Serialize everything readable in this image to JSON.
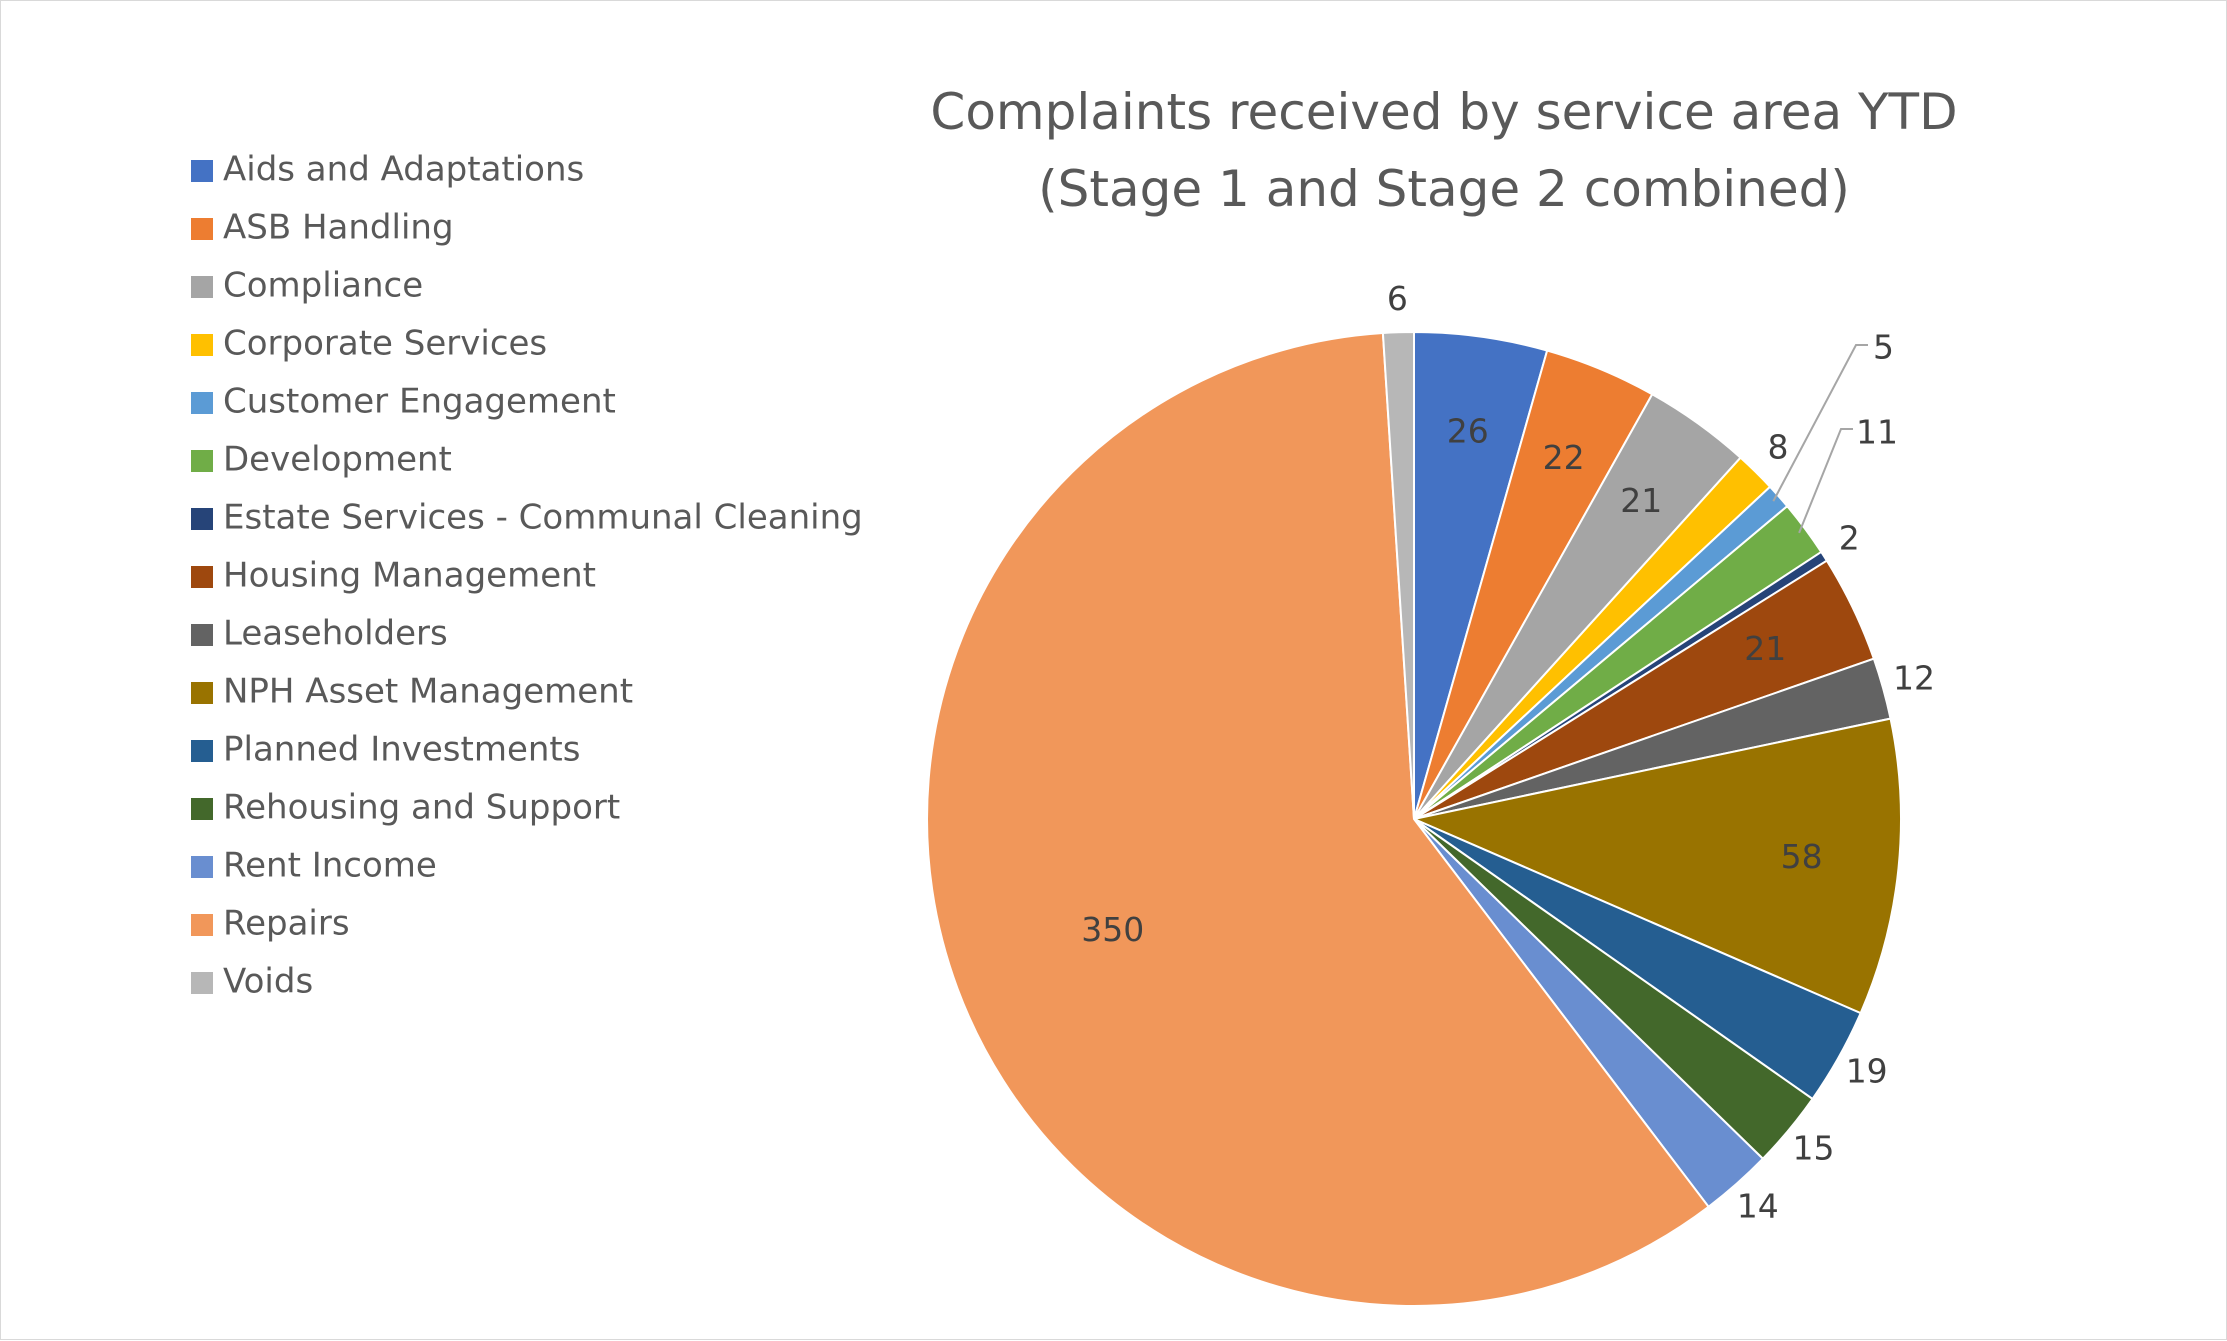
{
  "chart_data": {
    "type": "pie",
    "title": "Complaints received by service area YTD",
    "subtitle": "(Stage 1 and Stage 2 combined)",
    "legend_position": "left",
    "start_angle_deg": 0,
    "direction": "clockwise",
    "slices": [
      {
        "label": "Aids and Adaptations",
        "value": 26,
        "color": "#4472C4"
      },
      {
        "label": "ASB Handling",
        "value": 22,
        "color": "#ED7D31"
      },
      {
        "label": "Compliance",
        "value": 21,
        "color": "#A5A5A5"
      },
      {
        "label": "Corporate Services",
        "value": 8,
        "color": "#FFC000"
      },
      {
        "label": "Customer Engagement",
        "value": 5,
        "color": "#5B9BD5"
      },
      {
        "label": "Development",
        "value": 11,
        "color": "#70AD47"
      },
      {
        "label": "Estate Services - Communal Cleaning",
        "value": 2,
        "color": "#264478"
      },
      {
        "label": "Housing Management",
        "value": 21,
        "color": "#9E480E"
      },
      {
        "label": "Leaseholders",
        "value": 12,
        "color": "#636363"
      },
      {
        "label": "NPH Asset Management",
        "value": 58,
        "color": "#997300"
      },
      {
        "label": "Planned Investments",
        "value": 19,
        "color": "#255E91"
      },
      {
        "label": "Rehousing and Support",
        "value": 15,
        "color": "#43682B"
      },
      {
        "label": "Rent Income",
        "value": 14,
        "color": "#698ED0"
      },
      {
        "label": "Repairs",
        "value": 350,
        "color": "#F1975A"
      },
      {
        "label": "Voids",
        "value": 6,
        "color": "#B7B7B7"
      }
    ]
  }
}
